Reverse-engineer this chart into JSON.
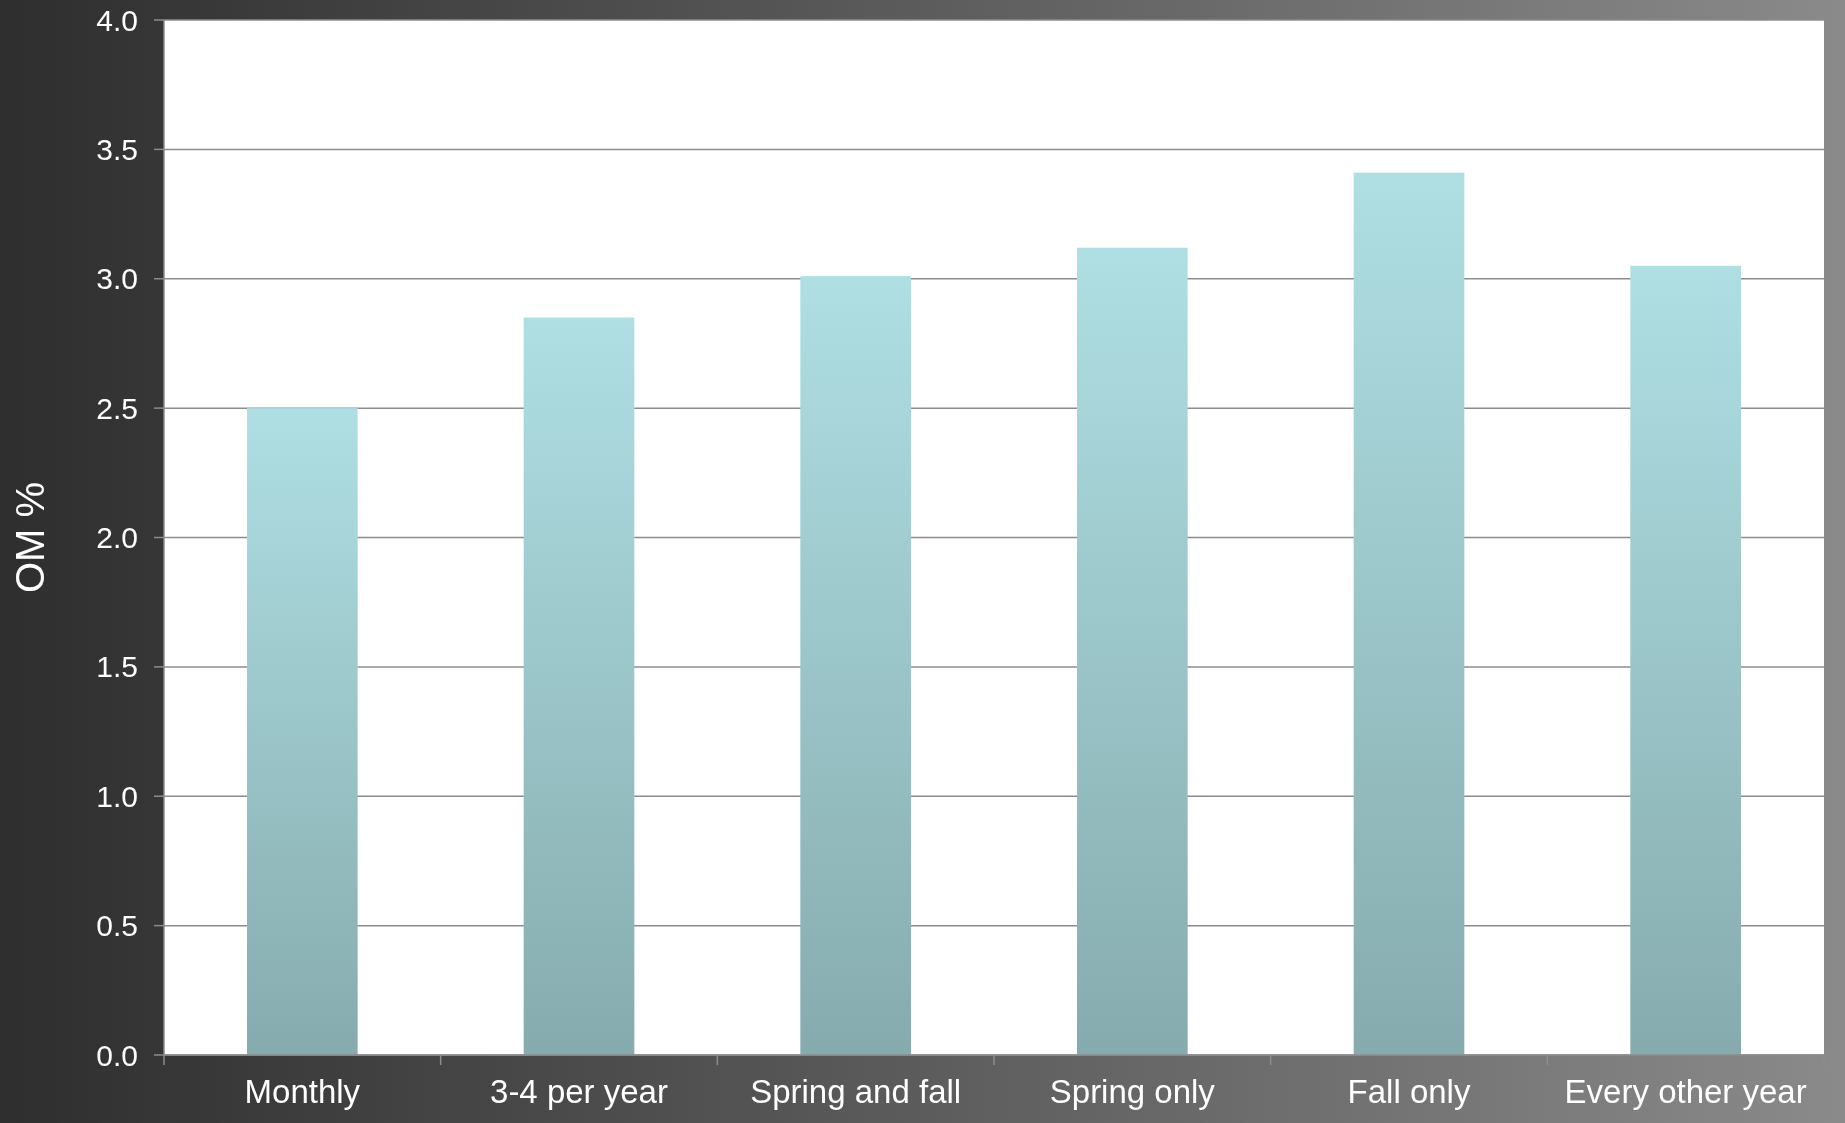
{
  "chart_data": {
    "type": "bar",
    "ylabel": "OM %",
    "categories": [
      "Monthly",
      "3-4 per year",
      "Spring and fall",
      "Spring only",
      "Fall only",
      "Every other year"
    ],
    "values": [
      2.5,
      2.85,
      3.01,
      3.12,
      3.41,
      3.05
    ],
    "color": "#afdfe3",
    "ylim": [
      0,
      4
    ],
    "yticks": [
      {
        "value": 0,
        "label": "0.0"
      },
      {
        "value": 0.5,
        "label": "0.5"
      },
      {
        "value": 1,
        "label": "1.0"
      },
      {
        "value": 1.5,
        "label": "1.5"
      },
      {
        "value": 2,
        "label": "2.0"
      },
      {
        "value": 2.5,
        "label": "2.5"
      },
      {
        "value": 3,
        "label": "3.0"
      },
      {
        "value": 3.5,
        "label": "3.5"
      },
      {
        "value": 4,
        "label": "4.0"
      }
    ],
    "grid": "y"
  }
}
